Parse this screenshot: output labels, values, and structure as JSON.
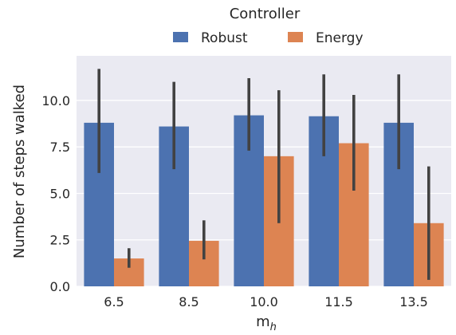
{
  "chart_data": {
    "type": "bar",
    "legend": {
      "title": "Controller",
      "placement": "top-center",
      "entries": [
        {
          "name": "Robust",
          "color": "#4c72b0"
        },
        {
          "name": "Energy",
          "color": "#dd8452"
        }
      ]
    },
    "xlabel": "m",
    "xlabel_subscript": "h",
    "ylabel": "Number of steps walked",
    "categories": [
      "6.5",
      "8.5",
      "10.0",
      "11.5",
      "13.5"
    ],
    "y_ticks": [
      "0.0",
      "2.5",
      "5.0",
      "7.5",
      "10.0"
    ],
    "ylim": [
      0,
      12.4
    ],
    "grid": true,
    "background": "#eaeaf2",
    "series": [
      {
        "name": "Robust",
        "color": "#4c72b0",
        "values": [
          8.8,
          8.6,
          9.2,
          9.15,
          8.8
        ],
        "error_low": [
          6.1,
          6.3,
          7.3,
          7.0,
          6.3
        ],
        "error_high": [
          11.7,
          11.0,
          11.2,
          11.4,
          11.4
        ]
      },
      {
        "name": "Energy",
        "color": "#dd8452",
        "values": [
          1.5,
          2.45,
          7.0,
          7.7,
          3.4
        ],
        "error_low": [
          1.0,
          1.45,
          3.4,
          5.15,
          0.35
        ],
        "error_high": [
          2.05,
          3.55,
          10.55,
          10.3,
          6.45
        ]
      }
    ]
  }
}
